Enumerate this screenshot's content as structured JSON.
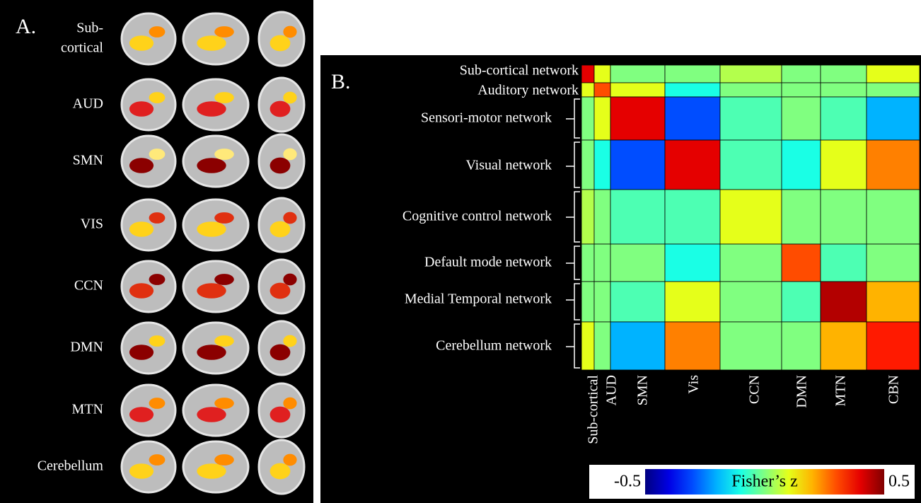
{
  "panel_a": {
    "label": "A.",
    "rows": [
      [
        "Sub-",
        "cortical"
      ],
      [
        "AUD"
      ],
      [
        "SMN"
      ],
      [
        "VIS"
      ],
      [
        "CCN"
      ],
      [
        "DMN"
      ],
      [
        "MTN"
      ],
      [
        "Cerebellum"
      ]
    ]
  },
  "chart_data": {
    "type": "heatmap",
    "label": "B.",
    "rows": [
      "Sub-cortical network",
      "Auditory network",
      "Sensori-motor network",
      "Visual network",
      "Cognitive control network",
      "Default mode network",
      "Medial Temporal network",
      "Cerebellum network"
    ],
    "columns": [
      "Sub-cortical",
      "AUD",
      "SMN",
      "Vis",
      "CCN",
      "DMN",
      "MTN",
      "CBN"
    ],
    "values": [
      [
        0.4,
        0.1,
        0,
        0,
        0.05,
        0,
        0,
        0.1
      ],
      [
        0.1,
        0.3,
        0.1,
        -0.1,
        0,
        0,
        0,
        0
      ],
      [
        0,
        0.1,
        0.4,
        -0.3,
        -0.05,
        0,
        -0.05,
        -0.2
      ],
      [
        0,
        -0.1,
        -0.3,
        0.4,
        -0.05,
        -0.1,
        0.1,
        0.25
      ],
      [
        0.05,
        0,
        -0.05,
        -0.05,
        0.1,
        0,
        0,
        0
      ],
      [
        0,
        0,
        0,
        -0.1,
        0,
        0.3,
        -0.05,
        0
      ],
      [
        0,
        0,
        -0.05,
        0.1,
        0,
        -0.05,
        0.45,
        0.2
      ],
      [
        0.1,
        0,
        -0.2,
        0.25,
        0,
        0,
        0.2,
        0.35
      ]
    ],
    "colorbar": {
      "title": "Fisher’s z",
      "clim": [
        -0.5,
        0.5
      ],
      "ticks": [
        -0.5,
        0.5
      ]
    }
  }
}
